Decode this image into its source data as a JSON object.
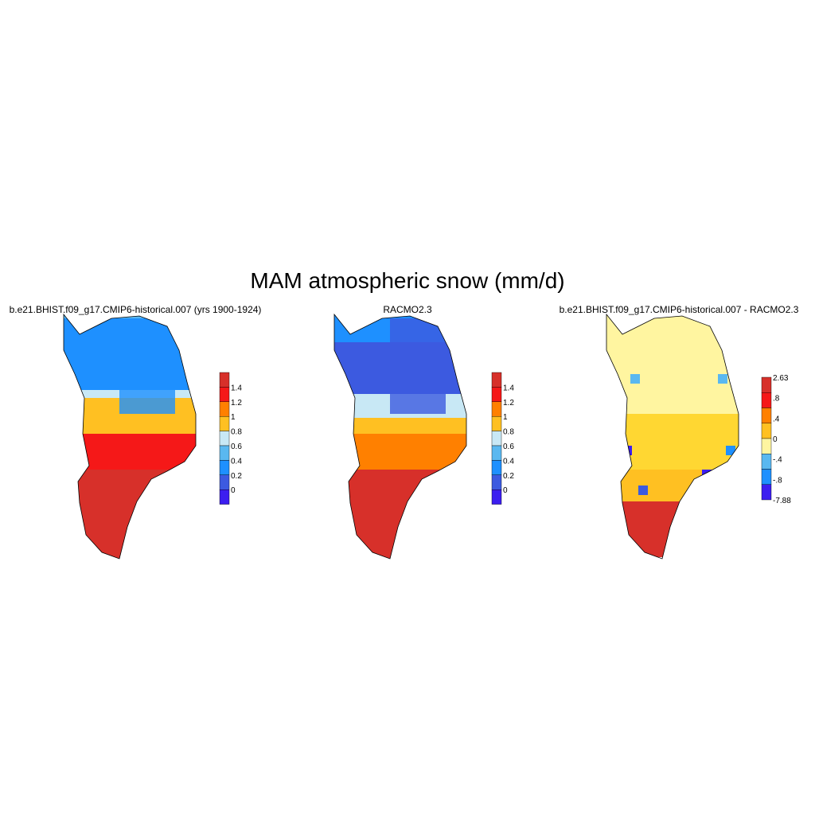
{
  "title": "MAM atmospheric snow (mm/d)",
  "panels": [
    {
      "title": "b.e21.BHIST.f09_g17.CMIP6-historical.007 (yrs 1900-1924)",
      "colorbar": {
        "labels": [
          "1.4",
          "1.2",
          "1",
          "0.8",
          "0.6",
          "0.4",
          "0.2",
          "0"
        ]
      }
    },
    {
      "title": "RACMO2.3",
      "colorbar": {
        "labels": [
          "1.4",
          "1.2",
          "1",
          "0.8",
          "0.6",
          "0.4",
          "0.2",
          "0"
        ]
      }
    },
    {
      "title": "b.e21.BHIST.f09_g17.CMIP6-historical.007 - RACMO2.3",
      "colorbar": {
        "labels": [
          "2.63",
          ".8",
          ".4",
          "0",
          "-.4",
          "-.8",
          "-7.88"
        ]
      }
    }
  ]
}
